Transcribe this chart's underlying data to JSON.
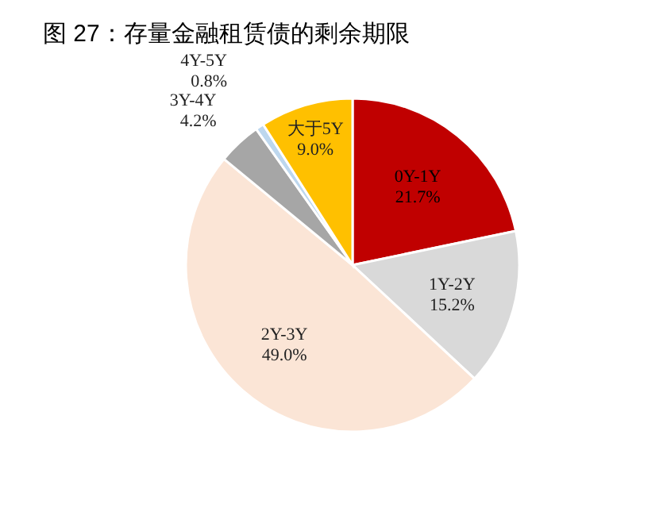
{
  "chart_data": {
    "type": "pie",
    "title": "图 27：存量金融租赁债的剩余期限",
    "categories": [
      "0Y-1Y",
      "1Y-2Y",
      "2Y-3Y",
      "3Y-4Y",
      "4Y-5Y",
      "大于5Y"
    ],
    "values": [
      21.7,
      15.2,
      49.0,
      4.2,
      0.8,
      9.0
    ],
    "colors": [
      "#c00000",
      "#d9d9d9",
      "#fbe5d6",
      "#a6a6a6",
      "#bdd7ee",
      "#ffc000"
    ],
    "value_labels": [
      "21.7%",
      "15.2%",
      "49.0%",
      "4.2%",
      "0.8%",
      "9.0%"
    ]
  }
}
